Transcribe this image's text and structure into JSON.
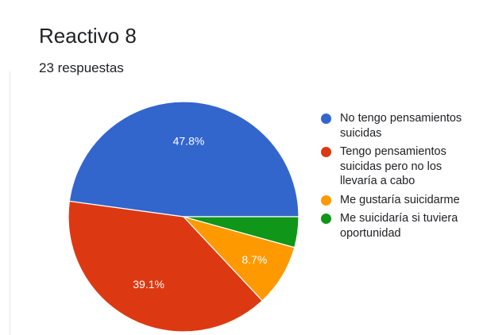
{
  "header": {
    "title": "Reactivo 8",
    "subtitle": "23 respuestas"
  },
  "chart_data": {
    "type": "pie",
    "title": "Reactivo 8",
    "subtitle": "23 respuestas",
    "slices": [
      {
        "label": "No tengo pensamientos suicidas",
        "count": 11,
        "percent": 47.8,
        "value_label": "47.8%",
        "color": "#3366cc"
      },
      {
        "label": "Tengo pensamientos suicidas pero no los llevaría a cabo",
        "count": 9,
        "percent": 39.1,
        "value_label": "39.1%",
        "color": "#dc3912"
      },
      {
        "label": "Me gustaría suicidarme",
        "count": 2,
        "percent": 8.7,
        "value_label": "8.7%",
        "color": "#ff9900"
      },
      {
        "label": "Me suicidaría si tuviera oportunidad",
        "count": 1,
        "percent": 4.3,
        "value_label": "",
        "color": "#109618"
      }
    ],
    "legend_position": "right"
  }
}
